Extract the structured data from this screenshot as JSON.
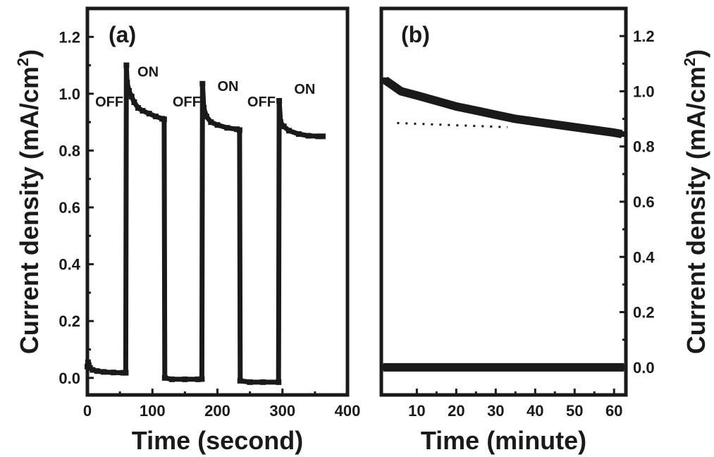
{
  "chart_data": [
    {
      "panel": "(a)",
      "type": "line",
      "xlabel": "Time (second)",
      "ylabel": "Current density (mA/cm²)",
      "ylabel_main": "Current density (mA/cm",
      "ylabel_sup": "2",
      "ylabel_close": ")",
      "xlim": [
        0,
        400
      ],
      "ylim": [
        -0.06,
        1.3
      ],
      "xticks": [
        "0",
        "100",
        "200",
        "300",
        "400"
      ],
      "yticks": [
        "0.0",
        "0.2",
        "0.4",
        "0.6",
        "0.8",
        "1.0",
        "1.2"
      ],
      "series": [
        {
          "points": [
            [
              0,
              0.04
            ],
            [
              1,
              0.055
            ],
            [
              2,
              0.045
            ],
            [
              4,
              0.035
            ],
            [
              8,
              0.028
            ],
            [
              15,
              0.024
            ],
            [
              25,
              0.021
            ],
            [
              40,
              0.019
            ],
            [
              55,
              0.018
            ],
            [
              59,
              0.018
            ],
            [
              60,
              1.1
            ],
            [
              61,
              1.04
            ],
            [
              64,
              1.01
            ],
            [
              68,
              0.99
            ],
            [
              72,
              0.97
            ],
            [
              78,
              0.95
            ],
            [
              85,
              0.94
            ],
            [
              95,
              0.93
            ],
            [
              105,
              0.92
            ],
            [
              115,
              0.912
            ],
            [
              118,
              0.91
            ],
            [
              119,
              0.0
            ],
            [
              130,
              -0.005
            ],
            [
              150,
              -0.005
            ],
            [
              170,
              -0.005
            ],
            [
              176,
              -0.004
            ],
            [
              177,
              1.035
            ],
            [
              179,
              0.95
            ],
            [
              183,
              0.92
            ],
            [
              190,
              0.9
            ],
            [
              200,
              0.89
            ],
            [
              215,
              0.88
            ],
            [
              230,
              0.875
            ],
            [
              234,
              0.872
            ],
            [
              235,
              -0.01
            ],
            [
              250,
              -0.015
            ],
            [
              270,
              -0.015
            ],
            [
              294,
              -0.015
            ],
            [
              295,
              0.975
            ],
            [
              297,
              0.9
            ],
            [
              302,
              0.885
            ],
            [
              310,
              0.87
            ],
            [
              325,
              0.858
            ],
            [
              340,
              0.852
            ],
            [
              355,
              0.85
            ],
            [
              362,
              0.85
            ]
          ]
        }
      ],
      "annotations": [
        {
          "text": "ON",
          "x": 77,
          "y": 1.06
        },
        {
          "text": "OFF",
          "x": 12,
          "y": 0.955
        },
        {
          "text": "OFF",
          "x": 131,
          "y": 0.955
        },
        {
          "text": "ON",
          "x": 200,
          "y": 1.01
        },
        {
          "text": "OFF",
          "x": 246,
          "y": 0.955
        },
        {
          "text": "ON",
          "x": 318,
          "y": 1.0
        }
      ]
    },
    {
      "panel": "(b)",
      "type": "line",
      "xlabel": "Time (minute)",
      "ylabel": "Current density (mA/cm²)",
      "ylabel_main": "Current density (mA/cm",
      "ylabel_sup": "2",
      "ylabel_close": ")",
      "xlim": [
        1,
        63
      ],
      "ylim": [
        -0.1,
        1.3
      ],
      "xticks": [
        "10",
        "20",
        "30",
        "40",
        "50",
        "60"
      ],
      "yticks": [
        "0.0",
        "0.2",
        "0.4",
        "0.6",
        "0.8",
        "1.0",
        "1.2"
      ],
      "series": [
        {
          "points": [
            [
              2,
              1.04
            ],
            [
              4,
              1.02
            ],
            [
              6,
              1.0
            ],
            [
              10,
              0.985
            ],
            [
              15,
              0.965
            ],
            [
              20,
              0.945
            ],
            [
              25,
              0.93
            ],
            [
              30,
              0.915
            ],
            [
              35,
              0.9
            ],
            [
              40,
              0.89
            ],
            [
              45,
              0.88
            ],
            [
              50,
              0.87
            ],
            [
              55,
              0.86
            ],
            [
              60,
              0.85
            ],
            [
              62,
              0.845
            ]
          ]
        },
        {
          "points": [
            [
              1.5,
              0.0
            ],
            [
              62.5,
              0.0
            ]
          ]
        }
      ],
      "reference_line": {
        "x": [
          5,
          33
        ],
        "y": [
          0.885,
          0.87
        ],
        "style": "dotted"
      }
    }
  ]
}
